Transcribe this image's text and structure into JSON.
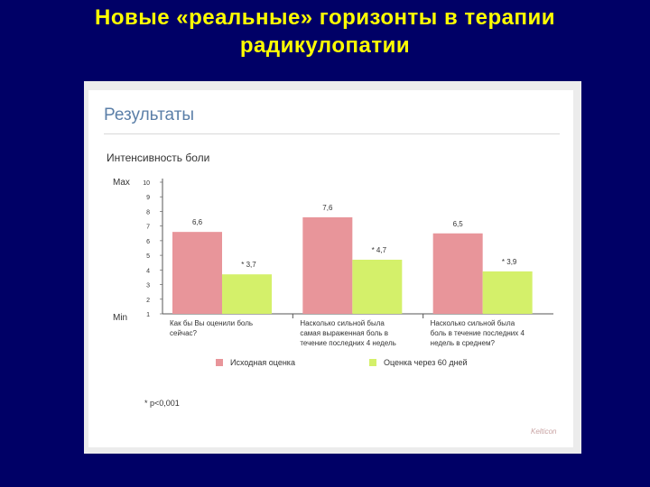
{
  "slide": {
    "title_line1": "Новые «реальные» горизонты в терапии",
    "title_line2": "радикулопатии"
  },
  "panel": {
    "heading": "Результаты",
    "footnote": "* p<0,001",
    "logo": "Kelticon"
  },
  "chart_data": {
    "type": "bar",
    "title": "Интенсивность боли",
    "y_max_label": "Max",
    "y_min_label": "Min",
    "ylim": [
      1,
      10
    ],
    "yticks": [
      "1",
      "2",
      "3",
      "4",
      "5",
      "6",
      "7",
      "8",
      "9",
      "10"
    ],
    "categories": [
      [
        "Как бы Вы оценили боль",
        "сейчас?"
      ],
      [
        "Насколько сильной была",
        "самая выраженная боль в",
        "течение последних 4 недель"
      ],
      [
        "Насколько сильной была",
        "боль в течение последних 4",
        "недель в среднем?"
      ]
    ],
    "series": [
      {
        "name": "Исходная оценка",
        "color": "#e8959a",
        "values": [
          6.6,
          7.6,
          6.5
        ],
        "labels": [
          "6,6",
          "7,6",
          "6,5"
        ]
      },
      {
        "name": "Оценка через 60 дней",
        "color": "#d4f06a",
        "values": [
          3.7,
          4.7,
          3.9
        ],
        "labels": [
          "* 3,7",
          "* 4,7",
          "* 3,9"
        ]
      }
    ]
  }
}
